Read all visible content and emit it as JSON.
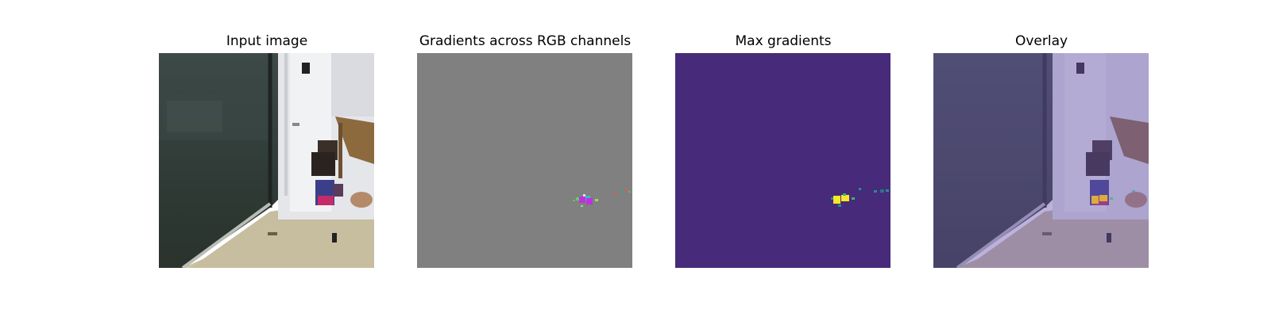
{
  "panels": [
    {
      "title": "Input image"
    },
    {
      "title": "Gradients across RGB channels"
    },
    {
      "title": "Max gradients"
    },
    {
      "title": "Overlay"
    }
  ],
  "colors": {
    "gradient_background": "#808080",
    "max_gradient_background": "#472a7a",
    "max_gradient_hot": "#fde725",
    "max_gradient_mid": "#35b779",
    "overlay_tint": "#6a55b0"
  }
}
